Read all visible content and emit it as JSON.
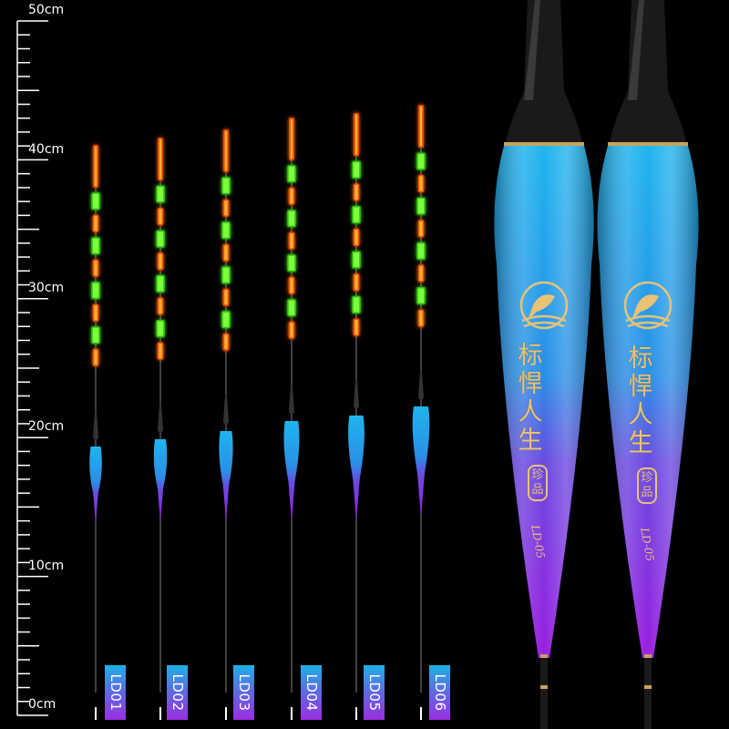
{
  "ruler": {
    "unit": "cm",
    "labels": [
      "50cm",
      "40cm",
      "30cm",
      "20cm",
      "10cm",
      "0cm"
    ]
  },
  "floats": [
    {
      "model": "LD01"
    },
    {
      "model": "LD02"
    },
    {
      "model": "LD03"
    },
    {
      "model": "LD04"
    },
    {
      "model": "LD05"
    },
    {
      "model": "LD06"
    }
  ],
  "closeup": {
    "brand_chars": [
      "标",
      "悍",
      "人",
      "生"
    ],
    "seal_chars": [
      "珍",
      "品"
    ],
    "model_code": "LD-05",
    "logo": "golden-fish-in-circle-logo"
  },
  "colors": {
    "background": "#000000",
    "body_top": "#1fb0e8",
    "body_bottom": "#9a1ee0",
    "light_red": "#ff5a10",
    "light_green": "#4cff20",
    "gold": "#e8c277"
  }
}
